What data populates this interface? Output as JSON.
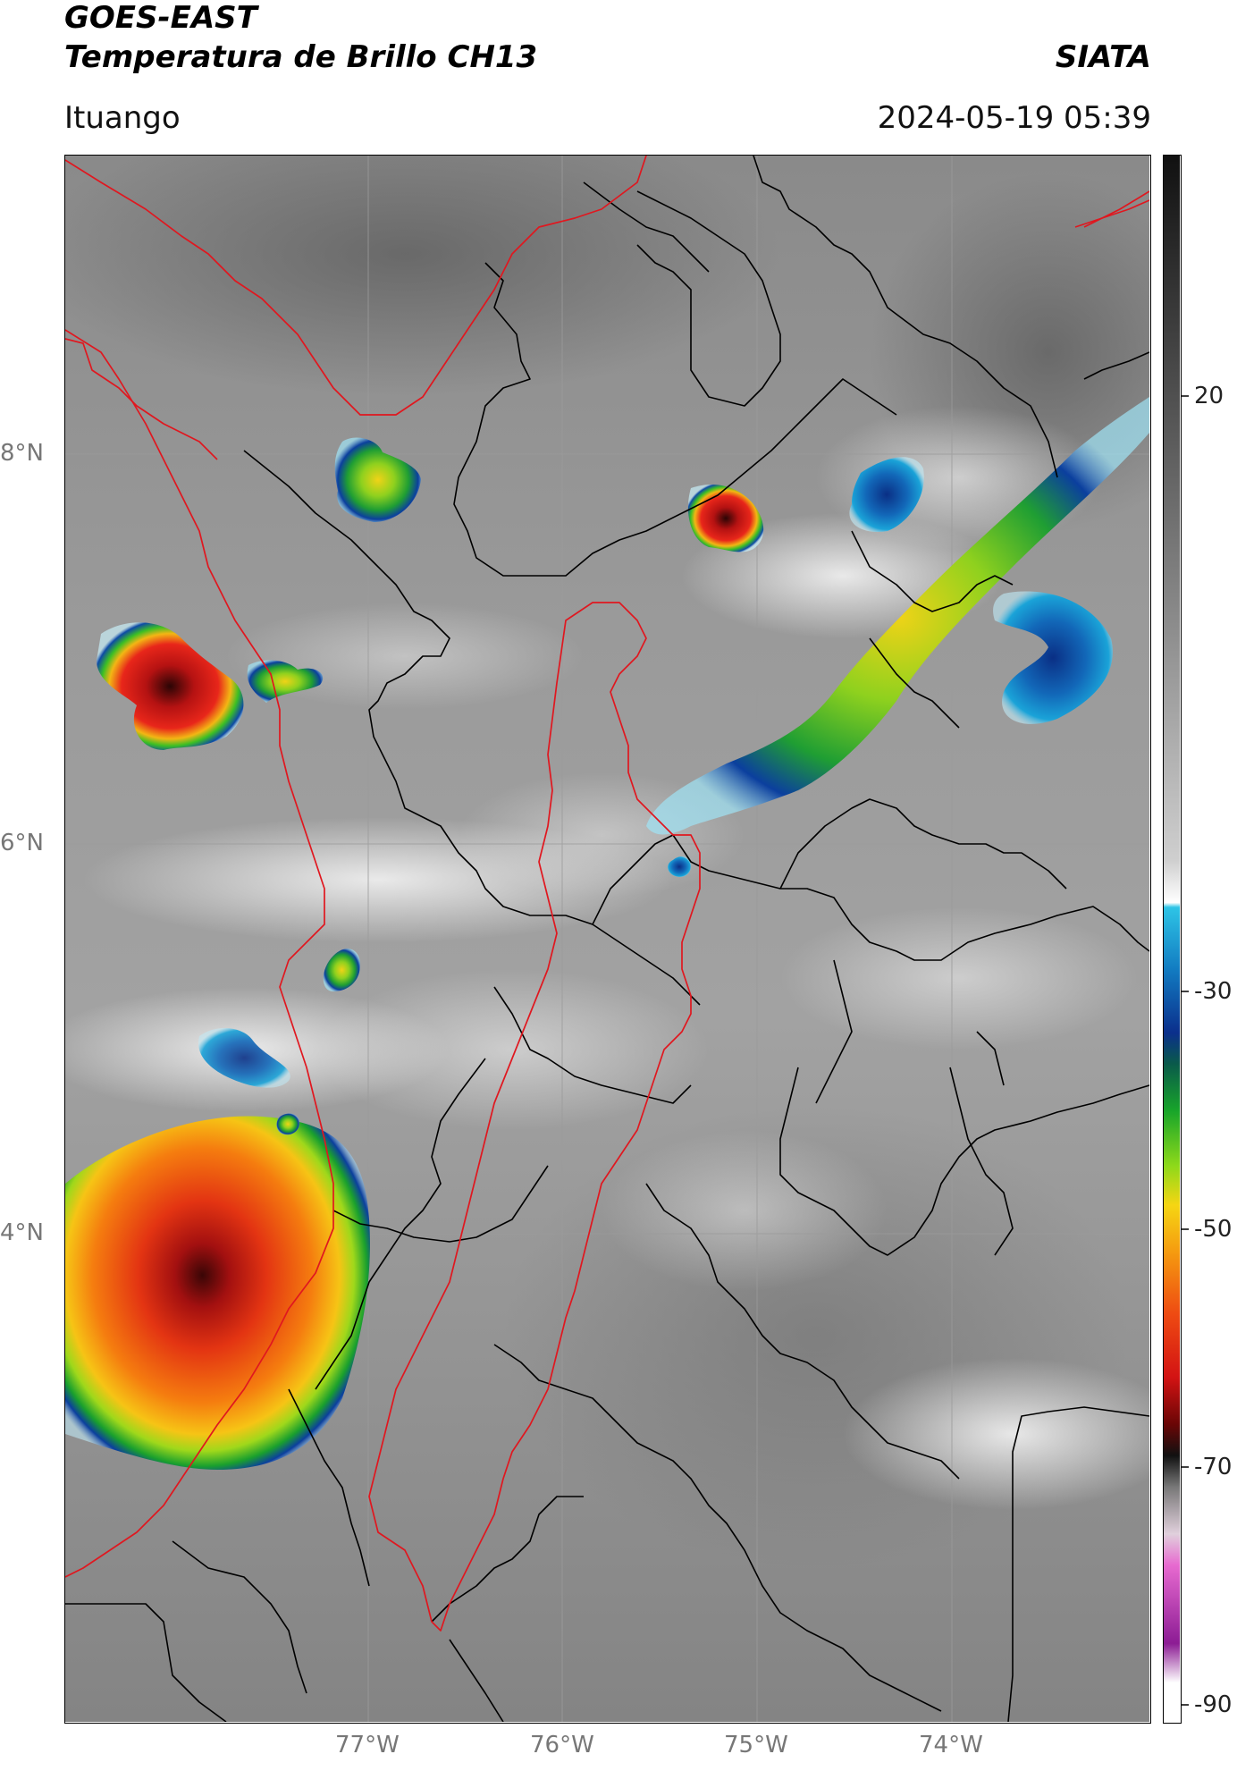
{
  "header": {
    "satellite": "GOES-EAST",
    "product": "Temperatura de Brillo CH13",
    "org": "SIATA",
    "location": "Ituango",
    "datetime": "2024-05-19 05:39"
  },
  "map": {
    "lat_labels": [
      "8°N",
      "6°N",
      "4°N"
    ],
    "lon_labels": [
      "77°W",
      "76°W",
      "75°W",
      "74°W"
    ],
    "lat_range": [
      2.0,
      9.6
    ],
    "lon_range": [
      -78.55,
      -73.0
    ]
  },
  "colorbar": {
    "ticks": [
      "20",
      "-30",
      "-50",
      "-70",
      "-90"
    ],
    "range": [
      -90,
      40
    ]
  },
  "colors": {
    "border_red": "#e0171f",
    "admin_black": "#000000"
  }
}
